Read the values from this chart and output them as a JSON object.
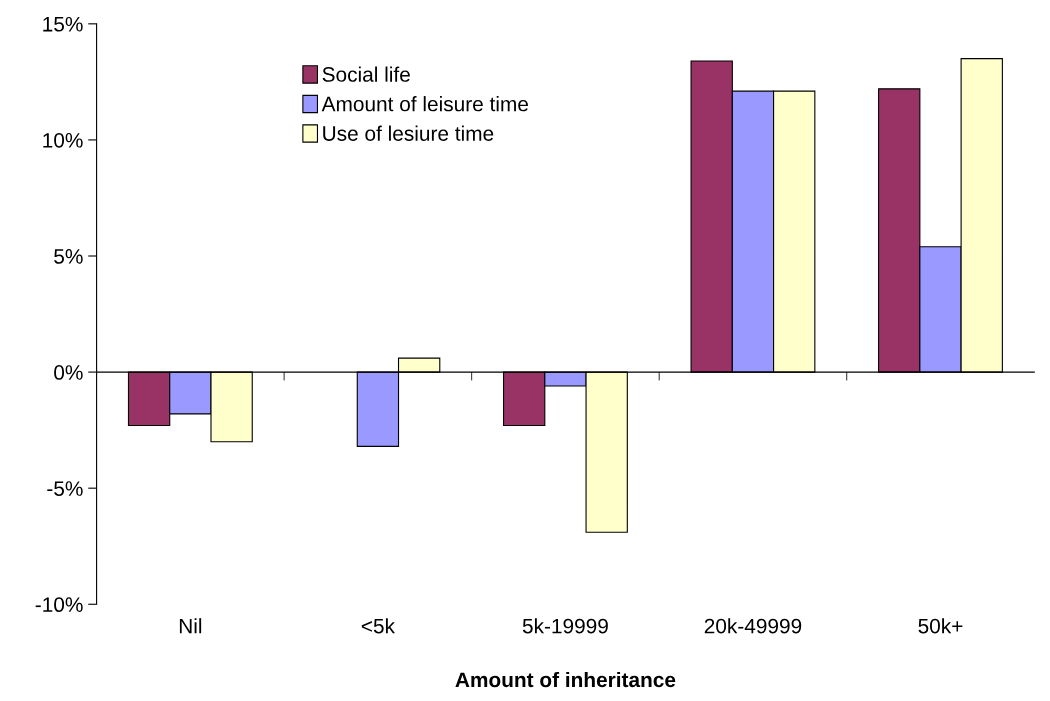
{
  "chart_data": {
    "type": "bar",
    "xlabel": "Amount of inheritance",
    "categories": [
      "Nil",
      "<5k",
      "5k-19999",
      "20k-49999",
      "50k+"
    ],
    "series": [
      {
        "name": "Social life",
        "color": "#993366",
        "values": [
          -2.3,
          null,
          -2.3,
          13.4,
          12.2
        ]
      },
      {
        "name": "Amount of leisure time",
        "color": "#9999ff",
        "values": [
          -1.8,
          -3.2,
          -0.6,
          12.1,
          5.4
        ]
      },
      {
        "name": "Use of lesiure time",
        "color": "#ffffcc",
        "values": [
          -3.0,
          0.6,
          -6.9,
          12.1,
          13.5
        ]
      }
    ],
    "ylim": [
      -10,
      15
    ],
    "yticks": [
      {
        "value": -10,
        "label": "-10%"
      },
      {
        "value": -5,
        "label": "-5%"
      },
      {
        "value": 0,
        "label": "0%"
      },
      {
        "value": 5,
        "label": "5%"
      },
      {
        "value": 10,
        "label": "10%"
      },
      {
        "value": 15,
        "label": "15%"
      }
    ],
    "legend": "top left"
  }
}
